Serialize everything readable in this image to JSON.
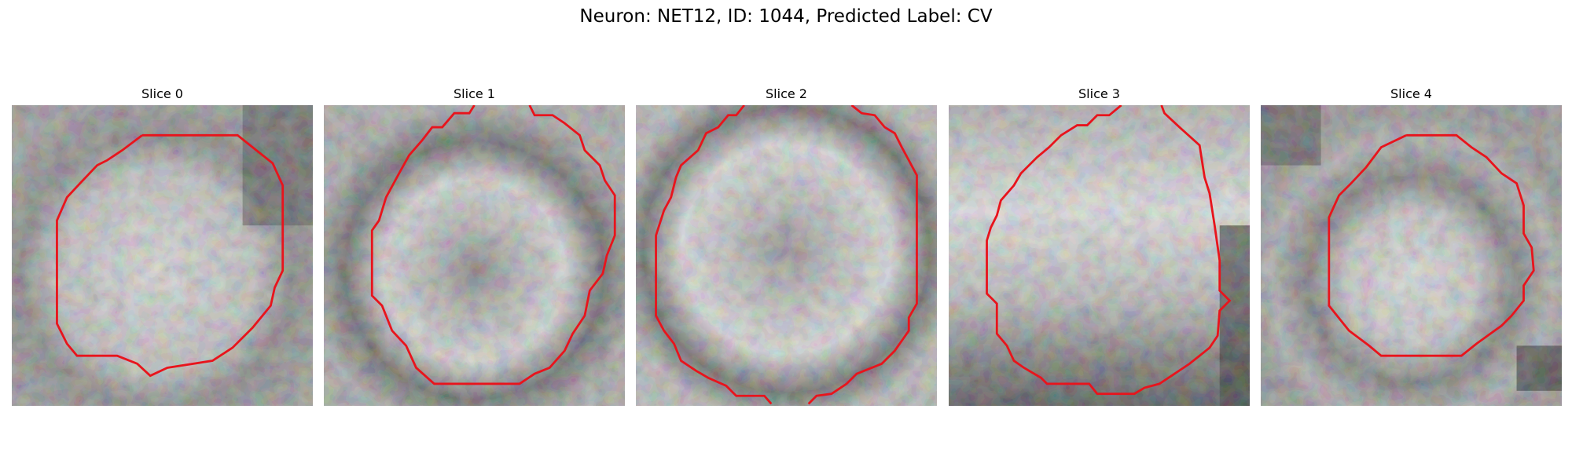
{
  "figure": {
    "title": "Neuron: NET12, ID: 1044, Predicted Label: CV"
  },
  "panels": [
    {
      "title": "Slice 0",
      "contour_color": "#e8141c"
    },
    {
      "title": "Slice 1",
      "contour_color": "#e8141c"
    },
    {
      "title": "Slice 2",
      "contour_color": "#e8141c"
    },
    {
      "title": "Slice 3",
      "contour_color": "#e8141c"
    },
    {
      "title": "Slice 4",
      "contour_color": "#e8141c"
    }
  ]
}
